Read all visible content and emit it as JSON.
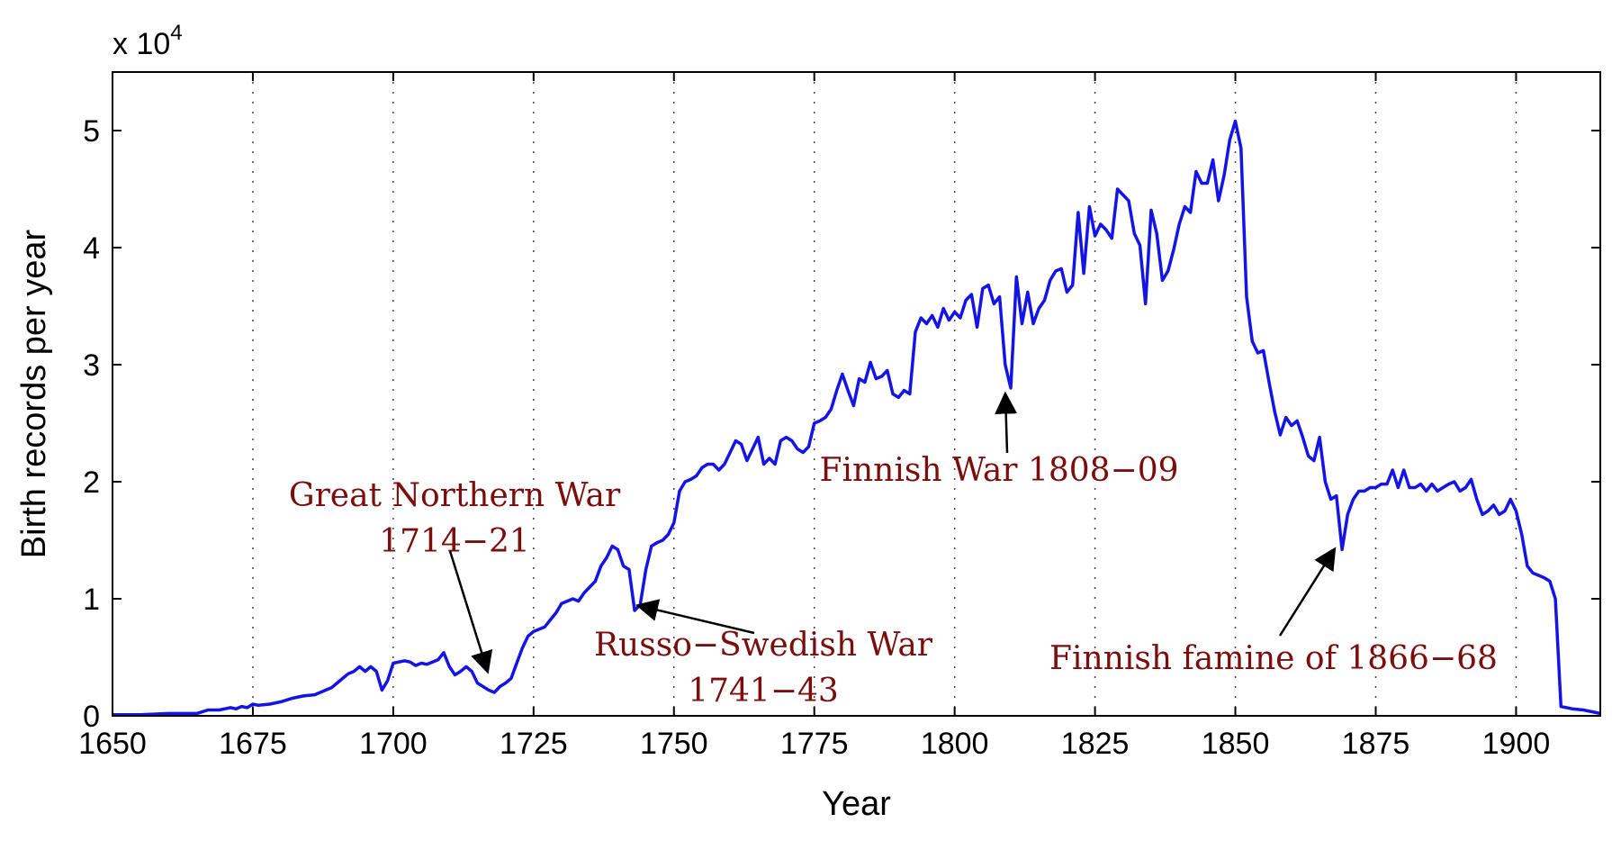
{
  "chart_data": {
    "type": "line",
    "xlabel": "Year",
    "ylabel": "Birth records per year",
    "y_multiplier": "x 10",
    "y_multiplier_exp": "4",
    "xlim": [
      1650,
      1915
    ],
    "ylim": [
      0,
      5.5
    ],
    "xticks": [
      1650,
      1675,
      1700,
      1725,
      1750,
      1775,
      1800,
      1825,
      1850,
      1875,
      1900
    ],
    "xtick_labels": [
      "1650",
      "1675",
      "1700",
      "1725",
      "1750",
      "1775",
      "1800",
      "1825",
      "1850",
      "1875",
      "1900"
    ],
    "yticks": [
      0,
      1,
      2,
      3,
      4,
      5
    ],
    "ytick_labels": [
      "0",
      "1",
      "2",
      "3",
      "4",
      "5"
    ],
    "grid": "x-dotted",
    "line_color": "#1414e6",
    "annotation_color": "#7b0d0d",
    "series": [
      {
        "x": [
          1650,
          1655,
          1660,
          1665,
          1667,
          1669,
          1671,
          1672,
          1673,
          1674,
          1675,
          1676,
          1678,
          1680,
          1682,
          1684,
          1686,
          1687,
          1688,
          1689,
          1690,
          1691,
          1692,
          1693,
          1694,
          1695,
          1696,
          1697,
          1698,
          1699,
          1700,
          1701,
          1702,
          1703,
          1704,
          1705,
          1706,
          1707,
          1708,
          1709,
          1710,
          1711,
          1712,
          1713,
          1714,
          1715,
          1716,
          1717,
          1718,
          1719,
          1720,
          1721,
          1722,
          1723,
          1724,
          1725,
          1726,
          1727,
          1728,
          1729,
          1730,
          1731,
          1732,
          1733,
          1734,
          1735,
          1736,
          1737,
          1738,
          1739,
          1740,
          1741,
          1742,
          1743,
          1744,
          1745,
          1746,
          1747,
          1748,
          1749,
          1750,
          1751,
          1752,
          1753,
          1754,
          1755,
          1756,
          1757,
          1758,
          1759,
          1760,
          1761,
          1762,
          1763,
          1764,
          1765,
          1766,
          1767,
          1768,
          1769,
          1770,
          1771,
          1772,
          1773,
          1774,
          1775,
          1776,
          1777,
          1778,
          1779,
          1780,
          1781,
          1782,
          1783,
          1784,
          1785,
          1786,
          1787,
          1788,
          1789,
          1790,
          1791,
          1792,
          1793,
          1794,
          1795,
          1796,
          1797,
          1798,
          1799,
          1800,
          1801,
          1802,
          1803,
          1804,
          1805,
          1806,
          1807,
          1808,
          1809,
          1810,
          1811,
          1812,
          1813,
          1814,
          1815,
          1816,
          1817,
          1818,
          1819,
          1820,
          1821,
          1822,
          1823,
          1824,
          1825,
          1826,
          1827,
          1828,
          1829,
          1830,
          1831,
          1832,
          1833,
          1834,
          1835,
          1836,
          1837,
          1838,
          1839,
          1840,
          1841,
          1842,
          1843,
          1844,
          1845,
          1846,
          1847,
          1848,
          1849,
          1850,
          1851,
          1852,
          1853,
          1854,
          1855,
          1856,
          1857,
          1858,
          1859,
          1860,
          1861,
          1862,
          1863,
          1864,
          1865,
          1866,
          1867,
          1868,
          1869,
          1870,
          1871,
          1872,
          1873,
          1874,
          1875,
          1876,
          1877,
          1878,
          1879,
          1880,
          1881,
          1882,
          1883,
          1884,
          1885,
          1886,
          1887,
          1888,
          1889,
          1890,
          1891,
          1892,
          1893,
          1894,
          1895,
          1896,
          1897,
          1898,
          1899,
          1900,
          1901,
          1902,
          1903,
          1904,
          1905,
          1906,
          1907,
          1908,
          1910,
          1912,
          1915
        ],
        "values": [
          0.01,
          0.01,
          0.02,
          0.02,
          0.05,
          0.05,
          0.07,
          0.06,
          0.08,
          0.07,
          0.1,
          0.09,
          0.1,
          0.12,
          0.15,
          0.17,
          0.18,
          0.2,
          0.22,
          0.24,
          0.28,
          0.32,
          0.36,
          0.38,
          0.42,
          0.38,
          0.42,
          0.38,
          0.22,
          0.3,
          0.45,
          0.46,
          0.47,
          0.46,
          0.43,
          0.45,
          0.44,
          0.46,
          0.48,
          0.54,
          0.42,
          0.35,
          0.38,
          0.42,
          0.38,
          0.28,
          0.25,
          0.22,
          0.2,
          0.25,
          0.28,
          0.32,
          0.45,
          0.58,
          0.68,
          0.72,
          0.74,
          0.76,
          0.82,
          0.88,
          0.96,
          0.98,
          1.0,
          0.98,
          1.05,
          1.1,
          1.15,
          1.28,
          1.35,
          1.45,
          1.42,
          1.28,
          1.25,
          0.9,
          0.95,
          1.25,
          1.45,
          1.48,
          1.5,
          1.55,
          1.65,
          1.92,
          2.0,
          2.02,
          2.05,
          2.12,
          2.15,
          2.15,
          2.1,
          2.15,
          2.25,
          2.35,
          2.32,
          2.18,
          2.28,
          2.38,
          2.15,
          2.2,
          2.15,
          2.35,
          2.38,
          2.35,
          2.28,
          2.25,
          2.3,
          2.5,
          2.52,
          2.55,
          2.62,
          2.78,
          2.92,
          2.78,
          2.65,
          2.88,
          2.85,
          3.02,
          2.88,
          2.9,
          2.95,
          2.75,
          2.72,
          2.78,
          2.75,
          3.28,
          3.4,
          3.35,
          3.42,
          3.32,
          3.48,
          3.38,
          3.45,
          3.4,
          3.55,
          3.6,
          3.32,
          3.65,
          3.68,
          3.52,
          3.58,
          3.0,
          2.8,
          3.75,
          3.35,
          3.62,
          3.35,
          3.48,
          3.55,
          3.72,
          3.8,
          3.82,
          3.62,
          3.68,
          4.3,
          3.78,
          4.35,
          4.1,
          4.2,
          4.15,
          4.08,
          4.5,
          4.45,
          4.4,
          4.12,
          4.02,
          3.52,
          4.32,
          4.12,
          3.72,
          3.8,
          3.98,
          4.2,
          4.35,
          4.3,
          4.65,
          4.55,
          4.55,
          4.75,
          4.4,
          4.62,
          4.92,
          5.08,
          4.85,
          3.58,
          3.2,
          3.1,
          3.12,
          2.85,
          2.6,
          2.4,
          2.55,
          2.48,
          2.52,
          2.38,
          2.22,
          2.18,
          2.38,
          2.0,
          1.85,
          1.88,
          1.42,
          1.72,
          1.85,
          1.92,
          1.92,
          1.95,
          1.95,
          1.98,
          1.98,
          2.1,
          1.95,
          2.1,
          1.95,
          1.95,
          1.98,
          1.92,
          1.98,
          1.92,
          1.95,
          1.98,
          2.0,
          1.92,
          1.95,
          2.02,
          1.85,
          1.72,
          1.75,
          1.8,
          1.72,
          1.75,
          1.85,
          1.75,
          1.55,
          1.28,
          1.22,
          1.2,
          1.18,
          1.15,
          1.0,
          0.08,
          0.06,
          0.05,
          0.02
        ]
      }
    ],
    "annotations": [
      {
        "lines": [
          "Great Northern War",
          "1714−21"
        ],
        "target": [
          1717,
          0.35
        ]
      },
      {
        "lines": [
          "Russo−Swedish War",
          "1741−43"
        ],
        "target": [
          1743,
          0.95
        ]
      },
      {
        "lines": [
          "Finnish War 1808−09"
        ],
        "target": [
          1809,
          2.78
        ]
      },
      {
        "lines": [
          "Finnish famine of 1866−68"
        ],
        "target": [
          1868,
          1.45
        ]
      }
    ]
  }
}
